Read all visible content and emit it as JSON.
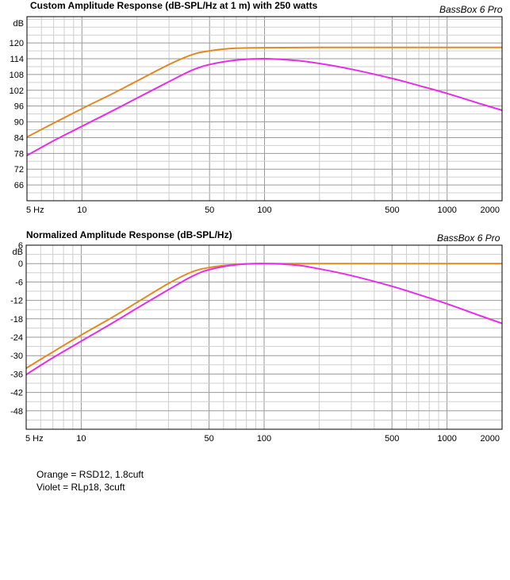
{
  "chart_data": [
    {
      "type": "line",
      "title": "Custom Amplitude Response (dB-SPL/Hz at 1 m) with 250 watts",
      "brand": "BassBox 6 Pro",
      "ylabel": "dB",
      "x_scale": "log",
      "xlim": [
        5,
        2000
      ],
      "ylim": [
        60,
        130
      ],
      "x_ticks": [
        5,
        10,
        50,
        100,
        500,
        1000,
        2000
      ],
      "x_tick_labels": [
        "5 Hz",
        "10",
        "50",
        "100",
        "500",
        "1000",
        "2000"
      ],
      "y_ticks": [
        120,
        114,
        108,
        102,
        96,
        90,
        84,
        78,
        72,
        66
      ],
      "grid": true,
      "series": [
        {
          "color": "#e28a22",
          "x": [
            5,
            7,
            10,
            15,
            20,
            30,
            40,
            50,
            70,
            100,
            200,
            500,
            1000,
            2000
          ],
          "y": [
            84.2,
            89.5,
            95,
            101,
            105.5,
            111.8,
            115.5,
            117,
            118,
            118.2,
            118.3,
            118.3,
            118.3,
            118.3
          ]
        },
        {
          "color": "#e62ee6",
          "x": [
            5,
            7,
            10,
            15,
            20,
            30,
            40,
            50,
            70,
            100,
            150,
            200,
            300,
            500,
            700,
            1000,
            1500,
            2000
          ],
          "y": [
            77.2,
            82.8,
            88.3,
            94.5,
            99,
            105.3,
            109.6,
            111.8,
            113.5,
            114,
            113.3,
            112.2,
            110,
            106.5,
            103.8,
            100.8,
            97,
            94.4
          ]
        }
      ]
    },
    {
      "type": "line",
      "title": "Normalized Amplitude Response (dB-SPL/Hz)",
      "brand": "BassBox 6 Pro",
      "ylabel": "dB",
      "x_scale": "log",
      "xlim": [
        5,
        2000
      ],
      "ylim": [
        -54,
        6
      ],
      "x_ticks": [
        5,
        10,
        50,
        100,
        500,
        1000,
        2000
      ],
      "x_tick_labels": [
        "5 Hz",
        "10",
        "50",
        "100",
        "500",
        "1000",
        "2000"
      ],
      "y_ticks": [
        6,
        0,
        -6,
        -12,
        -18,
        -24,
        -30,
        -36,
        -42,
        -48
      ],
      "grid": true,
      "series": [
        {
          "color": "#e28a22",
          "x": [
            5,
            7,
            10,
            15,
            20,
            30,
            40,
            50,
            70,
            100,
            200,
            500,
            1000,
            2000
          ],
          "y": [
            -34.1,
            -28.8,
            -23.3,
            -17.3,
            -12.8,
            -6.5,
            -2.8,
            -1.3,
            -0.3,
            0,
            0,
            0,
            0,
            0
          ]
        },
        {
          "color": "#e62ee6",
          "x": [
            5,
            7,
            10,
            15,
            20,
            30,
            40,
            50,
            70,
            100,
            150,
            200,
            300,
            500,
            700,
            1000,
            1500,
            2000
          ],
          "y": [
            -36.2,
            -30.7,
            -25.3,
            -19.2,
            -14.7,
            -8.5,
            -4.3,
            -2,
            -0.4,
            0,
            -0.5,
            -1.7,
            -3.9,
            -7.4,
            -10.1,
            -13.1,
            -16.9,
            -19.5
          ]
        }
      ]
    }
  ],
  "legend_lines": [
    "Orange = RSD12, 1.8cuft",
    "Violet = RLp18, 3cuft"
  ]
}
